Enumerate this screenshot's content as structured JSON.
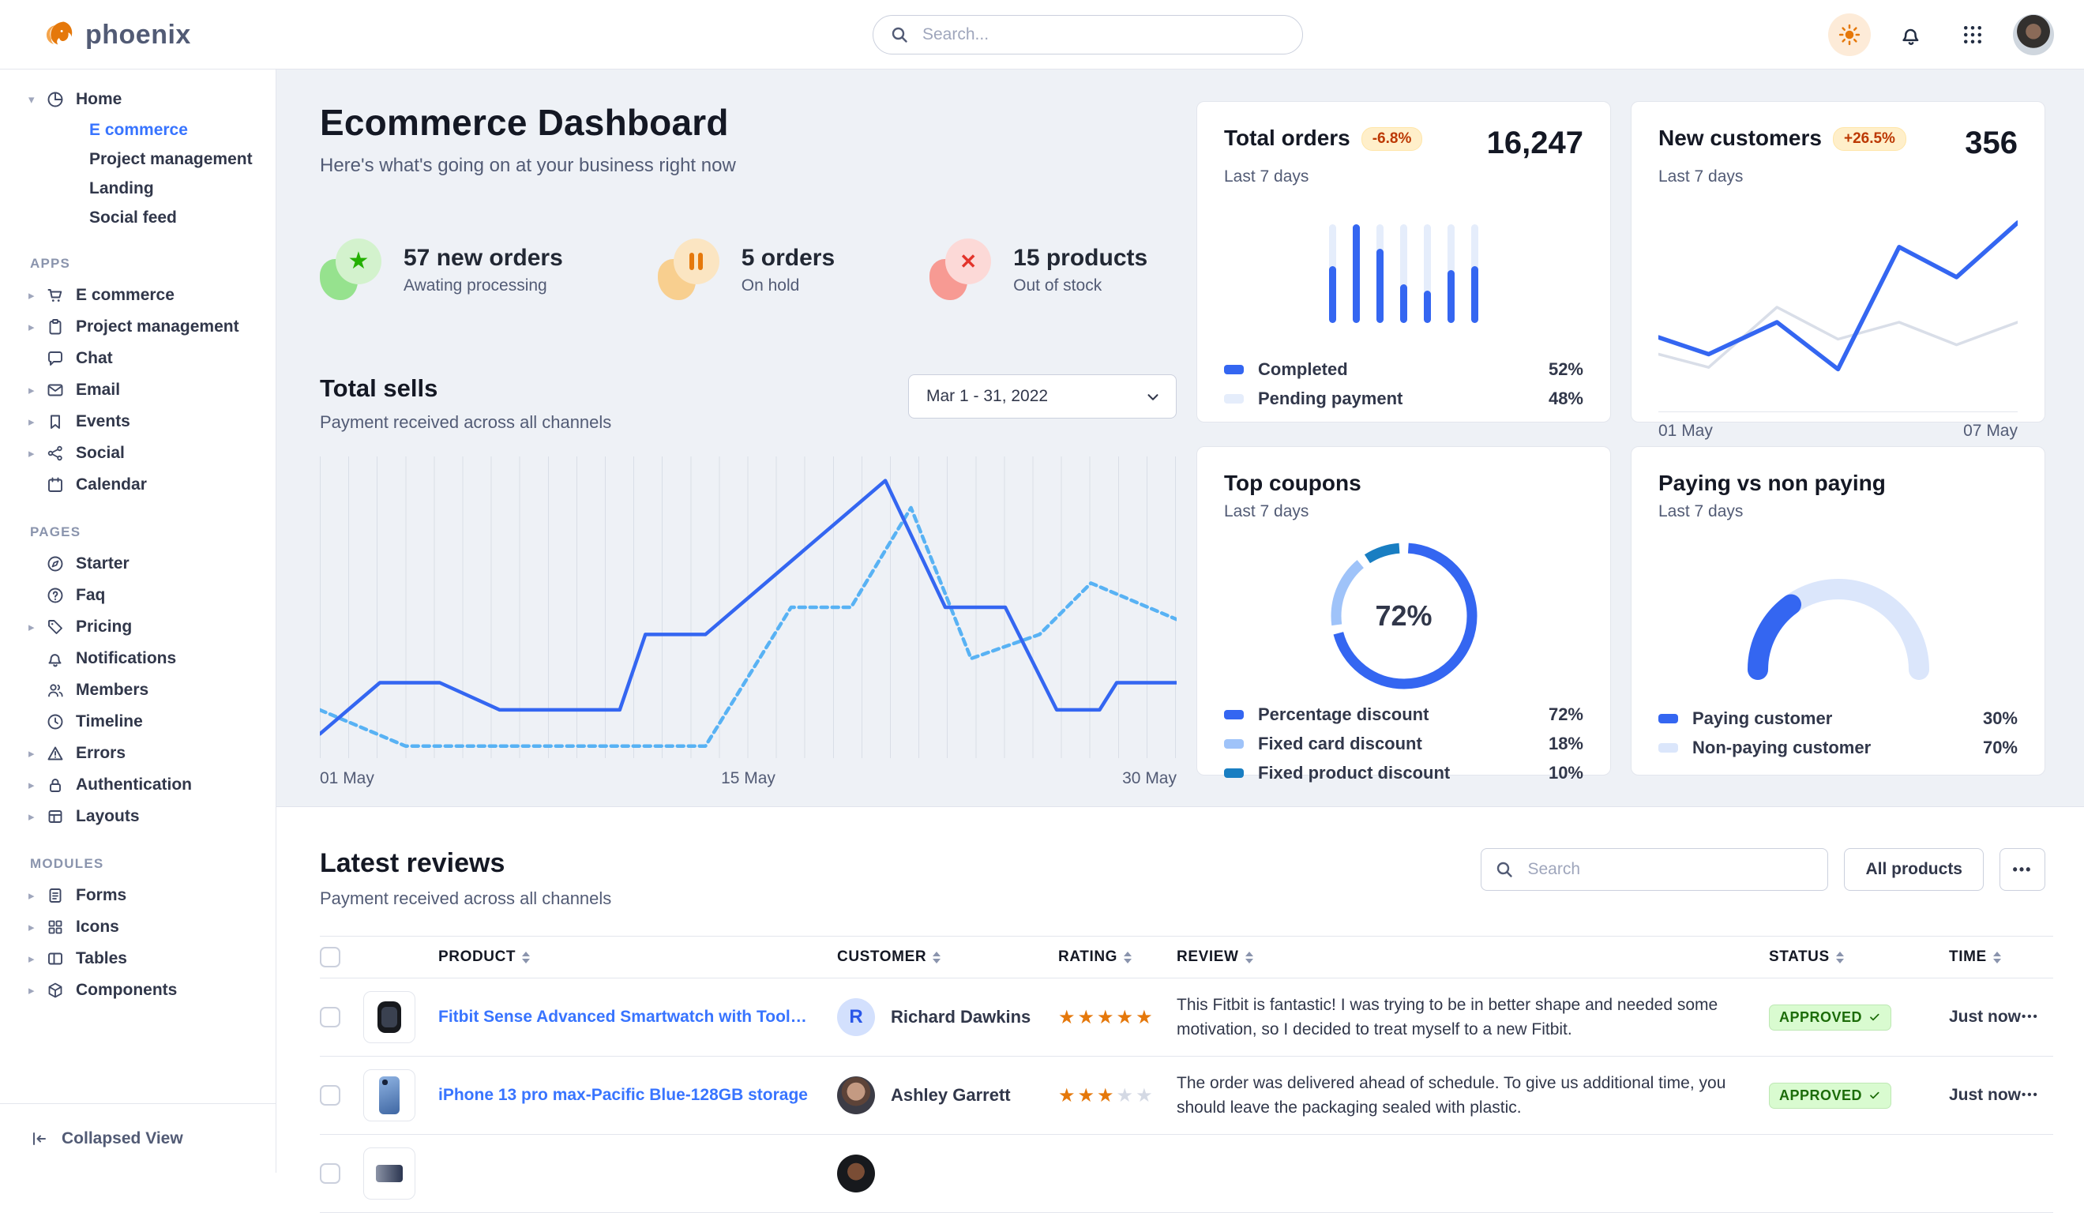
{
  "brand": {
    "name": "phoenix"
  },
  "navbar": {
    "search_placeholder": "Search..."
  },
  "sidebar": {
    "groups": [
      {
        "title": "",
        "items": [
          {
            "label": "Home",
            "icon": "pie",
            "caret": "down",
            "children": [
              {
                "label": "E commerce",
                "active": true
              },
              {
                "label": "Project management",
                "active": false
              },
              {
                "label": "Landing",
                "active": false
              },
              {
                "label": "Social feed",
                "active": false
              }
            ]
          }
        ]
      },
      {
        "title": "APPS",
        "items": [
          {
            "label": "E commerce",
            "icon": "cart",
            "caret": "right"
          },
          {
            "label": "Project management",
            "icon": "clipboard",
            "caret": "right"
          },
          {
            "label": "Chat",
            "icon": "chat",
            "caret": ""
          },
          {
            "label": "Email",
            "icon": "mail",
            "caret": "right"
          },
          {
            "label": "Events",
            "icon": "bookmark",
            "caret": "right"
          },
          {
            "label": "Social",
            "icon": "share",
            "caret": "right"
          },
          {
            "label": "Calendar",
            "icon": "calendar",
            "caret": ""
          }
        ]
      },
      {
        "title": "PAGES",
        "items": [
          {
            "label": "Starter",
            "icon": "compass",
            "caret": ""
          },
          {
            "label": "Faq",
            "icon": "help",
            "caret": ""
          },
          {
            "label": "Pricing",
            "icon": "tag",
            "caret": "right"
          },
          {
            "label": "Notifications",
            "icon": "bell",
            "caret": ""
          },
          {
            "label": "Members",
            "icon": "users",
            "caret": ""
          },
          {
            "label": "Timeline",
            "icon": "clock",
            "caret": ""
          },
          {
            "label": "Errors",
            "icon": "warning",
            "caret": "right"
          },
          {
            "label": "Authentication",
            "icon": "lock",
            "caret": "right"
          },
          {
            "label": "Layouts",
            "icon": "layout",
            "caret": "right"
          }
        ]
      },
      {
        "title": "MODULES",
        "items": [
          {
            "label": "Forms",
            "icon": "form",
            "caret": "right"
          },
          {
            "label": "Icons",
            "icon": "icons",
            "caret": "right"
          },
          {
            "label": "Tables",
            "icon": "table",
            "caret": "right"
          },
          {
            "label": "Components",
            "icon": "box",
            "caret": "right"
          }
        ]
      }
    ],
    "footer": {
      "label": "Collapsed View"
    }
  },
  "header": {
    "title": "Ecommerce Dashboard",
    "subtitle": "Here's what's going on at your business right now"
  },
  "stats": [
    {
      "title": "57 new orders",
      "subtitle": "Awating processing",
      "icon": "star",
      "accent": "#23b000"
    },
    {
      "title": "5 orders",
      "subtitle": "On hold",
      "icon": "pause",
      "accent": "#e5780b"
    },
    {
      "title": "15 products",
      "subtitle": "Out of stock",
      "icon": "x",
      "accent": "#e3342b"
    }
  ],
  "total_sells": {
    "title": "Total sells",
    "subtitle": "Payment received across all channels",
    "date_range": "Mar 1 - 31, 2022",
    "chart_data": {
      "type": "line",
      "x_labels": [
        "01 May",
        "15 May",
        "30 May"
      ],
      "series": [
        {
          "name": "current",
          "style": "solid",
          "color": "#3466f1",
          "points": [
            [
              0,
              8
            ],
            [
              7,
              25
            ],
            [
              14,
              25
            ],
            [
              21,
              16
            ],
            [
              35,
              16
            ],
            [
              38,
              41
            ],
            [
              45,
              41
            ],
            [
              66,
              92
            ],
            [
              73,
              50
            ],
            [
              80,
              50
            ],
            [
              86,
              16
            ],
            [
              91,
              16
            ],
            [
              93,
              25
            ],
            [
              100,
              25
            ]
          ]
        },
        {
          "name": "previous",
          "style": "dashed",
          "color": "#58b2f4",
          "points": [
            [
              0,
              16
            ],
            [
              10,
              4
            ],
            [
              45,
              4
            ],
            [
              55,
              50
            ],
            [
              62,
              50
            ],
            [
              69,
              83
            ],
            [
              76,
              33
            ],
            [
              84,
              41
            ],
            [
              90,
              58
            ],
            [
              100,
              46
            ]
          ]
        }
      ]
    }
  },
  "cards": {
    "total_orders": {
      "title": "Total orders",
      "badge": "-6.8%",
      "period": "Last 7 days",
      "value": "16,247",
      "chart_data": {
        "type": "bar",
        "completed_pct": [
          58,
          100,
          75,
          39,
          33,
          54,
          58
        ]
      },
      "legend": [
        {
          "label": "Completed",
          "value": "52%",
          "swatch": "#3466f1"
        },
        {
          "label": "Pending payment",
          "value": "48%",
          "swatch": "#e5edfb"
        }
      ]
    },
    "new_customers": {
      "title": "New customers",
      "badge": "+26.5%",
      "period": "Last 7 days",
      "value": "356",
      "x_labels": [
        "01 May",
        "07 May"
      ],
      "chart_data": {
        "type": "line",
        "series": [
          {
            "name": "new customers",
            "style": "solid",
            "color": "#3466f1",
            "width": 5.5,
            "points": [
              [
                0,
                34
              ],
              [
                14,
                25
              ],
              [
                33,
                42
              ],
              [
                50,
                17
              ],
              [
                67,
                82
              ],
              [
                83,
                66
              ],
              [
                100,
                95
              ]
            ]
          },
          {
            "name": "previous period",
            "style": "solid",
            "color": "#d9dee8",
            "width": 3.5,
            "points": [
              [
                0,
                25
              ],
              [
                14,
                18
              ],
              [
                33,
                50
              ],
              [
                50,
                33
              ],
              [
                67,
                42
              ],
              [
                83,
                30
              ],
              [
                100,
                42
              ]
            ]
          }
        ]
      }
    },
    "top_coupons": {
      "title": "Top coupons",
      "period": "Last 7 days",
      "center_label": "72%",
      "chart_data": {
        "type": "donut",
        "segments": [
          {
            "label": "Percentage discount",
            "value": 72,
            "color": "#3466f1"
          },
          {
            "label": "Fixed card discount",
            "value": 18,
            "color": "#9fc3f9"
          },
          {
            "label": "Fixed product discount",
            "value": 10,
            "color": "#197ec2"
          }
        ]
      },
      "legend": [
        {
          "label": "Percentage discount",
          "value": "72%",
          "swatch": "#3466f1"
        },
        {
          "label": "Fixed card discount",
          "value": "18%",
          "swatch": "#9fc3f9"
        },
        {
          "label": "Fixed product discount",
          "value": "10%",
          "swatch": "#197ec2"
        }
      ]
    },
    "paying": {
      "title": "Paying vs non paying",
      "period": "Last 7 days",
      "chart_data": {
        "type": "gauge",
        "segments": [
          {
            "label": "Paying customer",
            "value": 30,
            "color": "#3466f1"
          },
          {
            "label": "Non-paying customer",
            "value": 70,
            "color": "#dbe6fb"
          }
        ]
      },
      "legend": [
        {
          "label": "Paying customer",
          "value": "30%",
          "swatch": "#3466f1"
        },
        {
          "label": "Non-paying customer",
          "value": "70%",
          "swatch": "#dbe6fb"
        }
      ]
    }
  },
  "reviews": {
    "title": "Latest reviews",
    "subtitle": "Payment received across all channels",
    "search_placeholder": "Search",
    "all_products_label": "All products",
    "columns": [
      "PRODUCT",
      "CUSTOMER",
      "RATING",
      "REVIEW",
      "STATUS",
      "TIME"
    ],
    "rows": [
      {
        "product": "Fitbit Sense Advanced Smartwatch with Tools fo...",
        "product_image": "smartwatch",
        "customer": "Richard Dawkins",
        "avatar_initial": "R",
        "rating": 5,
        "review": "This Fitbit is fantastic! I was trying to be in better shape and needed some motivation, so I decided to treat myself to a new Fitbit.",
        "status": "APPROVED",
        "time": "Just now"
      },
      {
        "product": "iPhone 13 pro max-Pacific Blue-128GB storage",
        "product_image": "iphone",
        "customer": "Ashley Garrett",
        "avatar_initial": "",
        "rating": 3,
        "review": "The order was delivered ahead of schedule. To give us additional time, you should leave the packaging sealed with plastic.",
        "status": "APPROVED",
        "time": "Just now"
      }
    ]
  }
}
